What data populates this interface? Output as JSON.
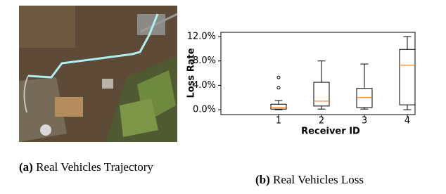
{
  "subfigures": [
    {
      "label": "(a)",
      "caption": "Real Vehicles Trajectory"
    },
    {
      "label": "(b)",
      "caption": "Real Vehicles Loss"
    }
  ],
  "chart_data": {
    "type": "box",
    "xlabel": "Receiver ID",
    "ylabel": "Loss Rate",
    "categories": [
      "1",
      "2",
      "3",
      "4"
    ],
    "boxes": [
      {
        "whislo": 0.0,
        "q1": 0.1,
        "med": 0.35,
        "q3": 0.9,
        "whishi": 1.5,
        "fliers": [
          3.6,
          5.3
        ]
      },
      {
        "whislo": 0.1,
        "q1": 0.6,
        "med": 1.4,
        "q3": 4.5,
        "whishi": 8.0,
        "fliers": []
      },
      {
        "whislo": 0.1,
        "q1": 0.35,
        "med": 2.0,
        "q3": 3.5,
        "whishi": 7.5,
        "fliers": []
      },
      {
        "whislo": 0.0,
        "q1": 0.8,
        "med": 7.3,
        "q3": 9.9,
        "whishi": 12.0,
        "fliers": []
      }
    ],
    "median_color": "#ff7f0e",
    "box_color": "#000000",
    "ylim": [
      -0.8,
      12.7
    ],
    "yticks": [
      {
        "value": 0,
        "label": "0.0%"
      },
      {
        "value": 4,
        "label": "4.0%"
      },
      {
        "value": 8,
        "label": "8.0%"
      },
      {
        "value": 12,
        "label": "12.0%"
      }
    ]
  }
}
